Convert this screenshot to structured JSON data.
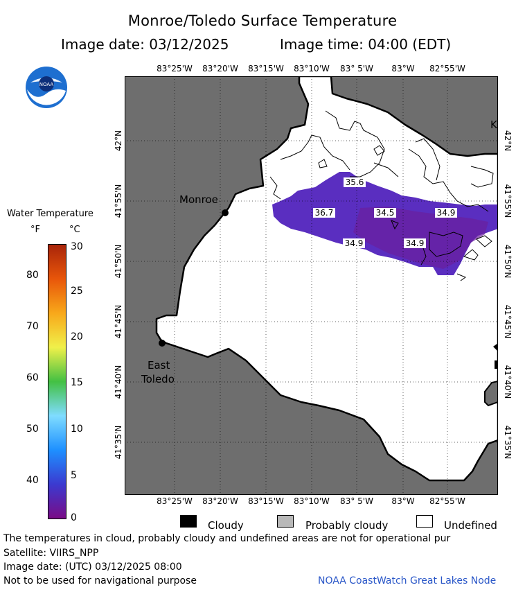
{
  "header": {
    "title": "Monroe/Toledo Surface Temperature",
    "image_date_label": "Image date:",
    "image_date": "03/12/2025",
    "image_time_label": "Image time:",
    "image_time": "04:00 (EDT)"
  },
  "logo": {
    "text": "NOAA",
    "icon": "noaa-logo"
  },
  "map": {
    "land_color": "#6e6e6e",
    "water_color": "#ffffff",
    "lon_labels": [
      "83°25'W",
      "83°20'W",
      "83°15'W",
      "83°10'W",
      "83° 5'W",
      "83°W",
      "82°55'W"
    ],
    "lat_labels": [
      "42°N",
      "41°55'N",
      "41°50'N",
      "41°45'N",
      "41°40'N",
      "41°35'N"
    ],
    "places": {
      "monroe": "Monroe",
      "east_toledo_1": "East",
      "east_toledo_2": "Toledo",
      "edge_label": "K"
    },
    "temps": [
      "35.6",
      "36.7",
      "34.5",
      "34.9",
      "34.9",
      "34.9"
    ]
  },
  "legend": {
    "title": "Water Temperature",
    "unit_f": "°F",
    "unit_c": "°C",
    "f_ticks": [
      "80",
      "70",
      "60",
      "50",
      "40"
    ],
    "c_ticks": [
      "30",
      "25",
      "20",
      "15",
      "10",
      "5",
      "0"
    ],
    "colors": [
      "#7a0b86",
      "#3b3ad0",
      "#1e90ff",
      "#7fdcff",
      "#43c043",
      "#f0f04a",
      "#f8a81a",
      "#e8560a",
      "#a8240a"
    ]
  },
  "cloud_legend": {
    "cloudy": "Cloudy",
    "probably_cloudy": "Probably cloudy",
    "undefined": "Undefined"
  },
  "footer": {
    "note": "The temperatures in cloud, probably cloudy and undefined areas are not for operational pur",
    "satellite": "Satellite: VIIRS_NPP",
    "utc_date": "Image date: (UTC) 03/12/2025  08:00",
    "nav_warning": "Not to be used for navigational purpose",
    "credit": "NOAA CoastWatch Great Lakes Node"
  }
}
